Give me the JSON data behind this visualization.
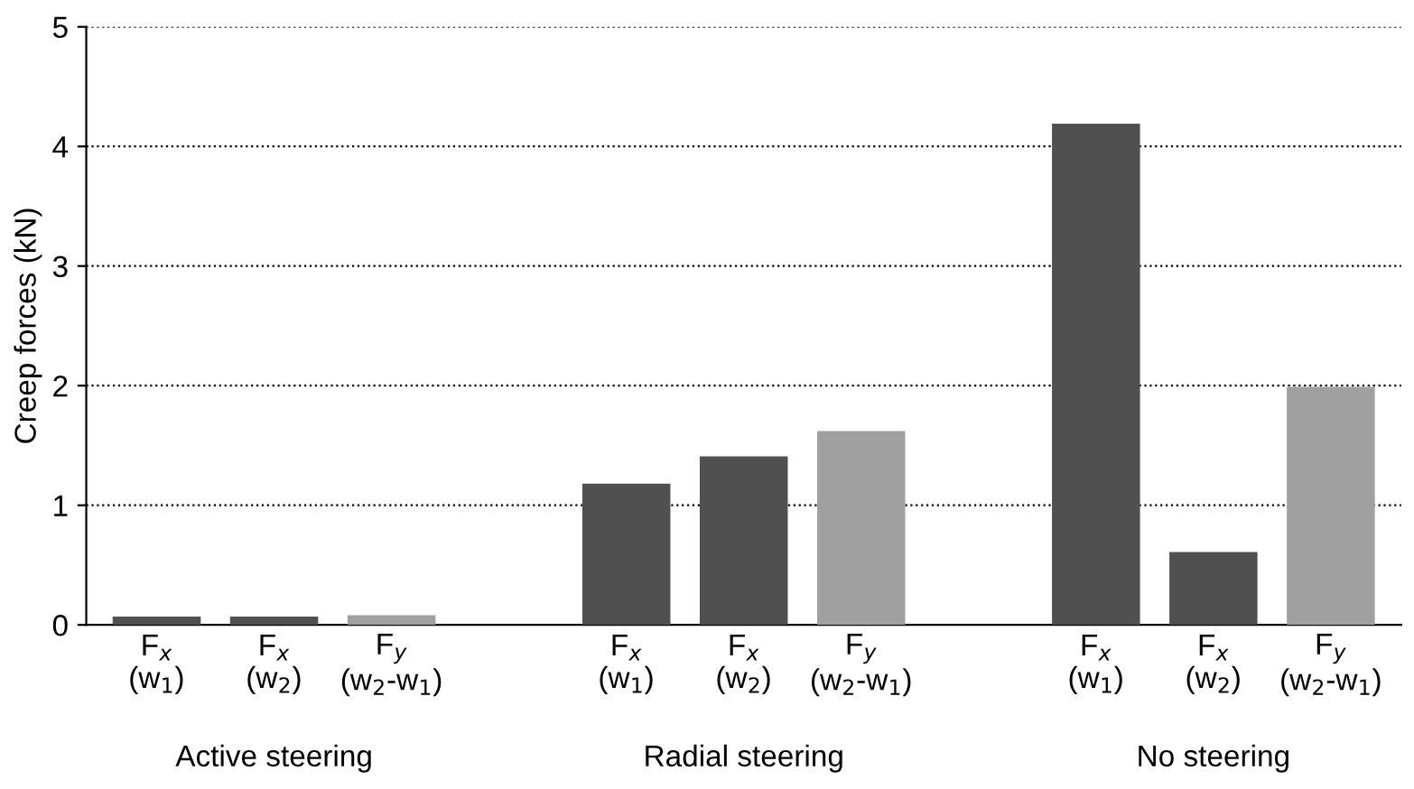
{
  "chart_data": {
    "type": "bar",
    "ylabel": "Creep forces (kN)",
    "categories": [
      "F$_{x}$\n(w$_{1}$)",
      "F$_{x}$\n(w$_{2}$)",
      "F$_{y}$\n(w$_{2}$-w$_{1}$)",
      null,
      "F$_{x}$\n(w$_{1}$)",
      "F$_{x}$\n(w$_{2}$)",
      "F$_{y}$\n(w$_{2}$-w$_{1}$)",
      null,
      "F$_{x}$\n(w$_{1}$)",
      "F$_{x}$\n(w$_{2}$)",
      "F$_{y}$\n(w$_{2}$-w$_{1}$)"
    ],
    "values": [
      0.07,
      0.07,
      0.08,
      null,
      1.18,
      1.41,
      1.62,
      null,
      4.19,
      0.61,
      1.99
    ],
    "colors": [
      "#505050",
      "#505050",
      "#a0a0a0",
      "#505050",
      "#505050",
      "#505050",
      "#a0a0a0",
      "#505050",
      "#505050",
      "#505050",
      "#a0a0a0"
    ],
    "annotations": [
      "Active steering",
      "Radial steering",
      "No steering"
    ],
    "ylim": [
      0,
      5
    ],
    "yticks": [
      0,
      1,
      2,
      3,
      4,
      5
    ],
    "grid": "y"
  }
}
